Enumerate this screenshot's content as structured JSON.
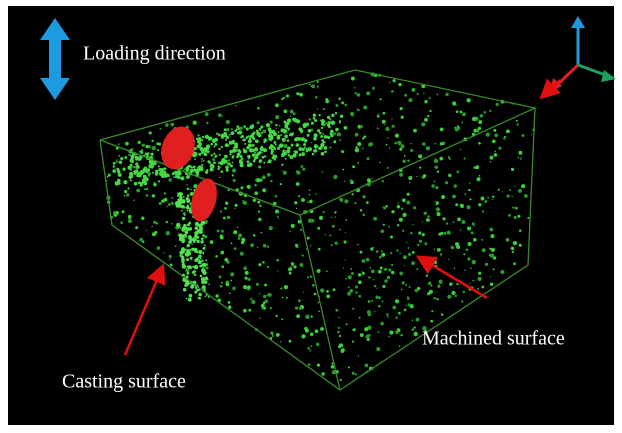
{
  "labels": {
    "loading": "Loading direction",
    "machined": "Machined surface",
    "casting": "Casting surface"
  }
}
